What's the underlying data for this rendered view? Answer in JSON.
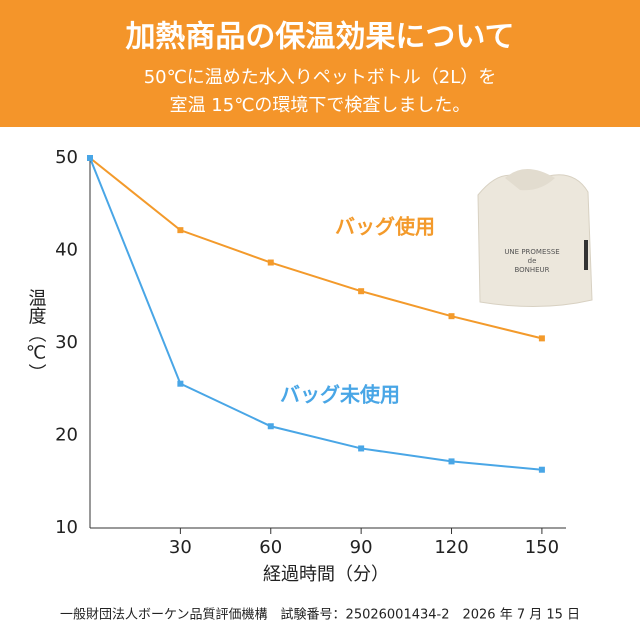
{
  "chart_data": {
    "type": "line",
    "title": "加熱商品の保温効果について",
    "subtitle": [
      "50℃に温めた水入りペットボトル（2L）を",
      "室温 15℃の環境下で検査しました。"
    ],
    "x_label": "経過時間（分）",
    "y_label": "温度（℃）",
    "x": [
      0,
      30,
      60,
      90,
      120,
      150
    ],
    "xlim": [
      0,
      158
    ],
    "xticks": [
      30,
      60,
      90,
      120,
      150
    ],
    "ylim": [
      10,
      50
    ],
    "yticks": [
      10,
      20,
      30,
      40,
      50
    ],
    "grid": false,
    "series": [
      {
        "name": "バッグ使用",
        "color": "#f39a2b",
        "values": [
          50,
          42.2,
          38.7,
          35.6,
          32.9,
          30.5
        ]
      },
      {
        "name": "バッグ未使用",
        "color": "#49a6e6",
        "values": [
          50,
          25.6,
          21.0,
          18.6,
          17.2,
          16.3
        ]
      }
    ],
    "product_label": [
      "UNE PROMESSE",
      "de",
      "BONHEUR"
    ],
    "footer": "一般財団法人ボーケン品質評価機構　試験番号：25026001434-2　2026 年 7 月 15 日"
  }
}
